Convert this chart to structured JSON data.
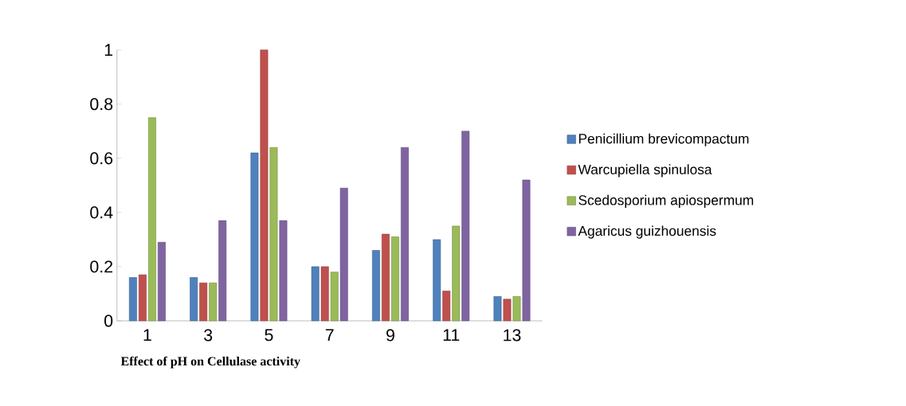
{
  "chart_data": {
    "type": "bar",
    "xlabel": "Effect of pH on Cellulase activity",
    "categories": [
      "1",
      "3",
      "5",
      "7",
      "9",
      "11",
      "13"
    ],
    "series": [
      {
        "name": "Penicillium brevicompactum",
        "color": "#4f81bd",
        "values": [
          0.16,
          0.16,
          0.62,
          0.2,
          0.26,
          0.3,
          0.09
        ]
      },
      {
        "name": "Warcupiella spinulosa",
        "color": "#c0504d",
        "values": [
          0.17,
          0.14,
          1.0,
          0.2,
          0.32,
          0.11,
          0.08
        ]
      },
      {
        "name": "Scedosporium apiospermum",
        "color": "#9bbb59",
        "values": [
          0.75,
          0.14,
          0.64,
          0.18,
          0.31,
          0.35,
          0.09
        ]
      },
      {
        "name": "Agaricus guizhouensis",
        "color": "#8064a2",
        "values": [
          0.29,
          0.37,
          0.37,
          0.49,
          0.64,
          0.7,
          0.52
        ]
      }
    ],
    "ylim": [
      0,
      1
    ],
    "yticks": [
      0,
      0.2,
      0.4,
      0.6,
      0.8,
      1
    ],
    "legend": "right",
    "grid": false
  }
}
